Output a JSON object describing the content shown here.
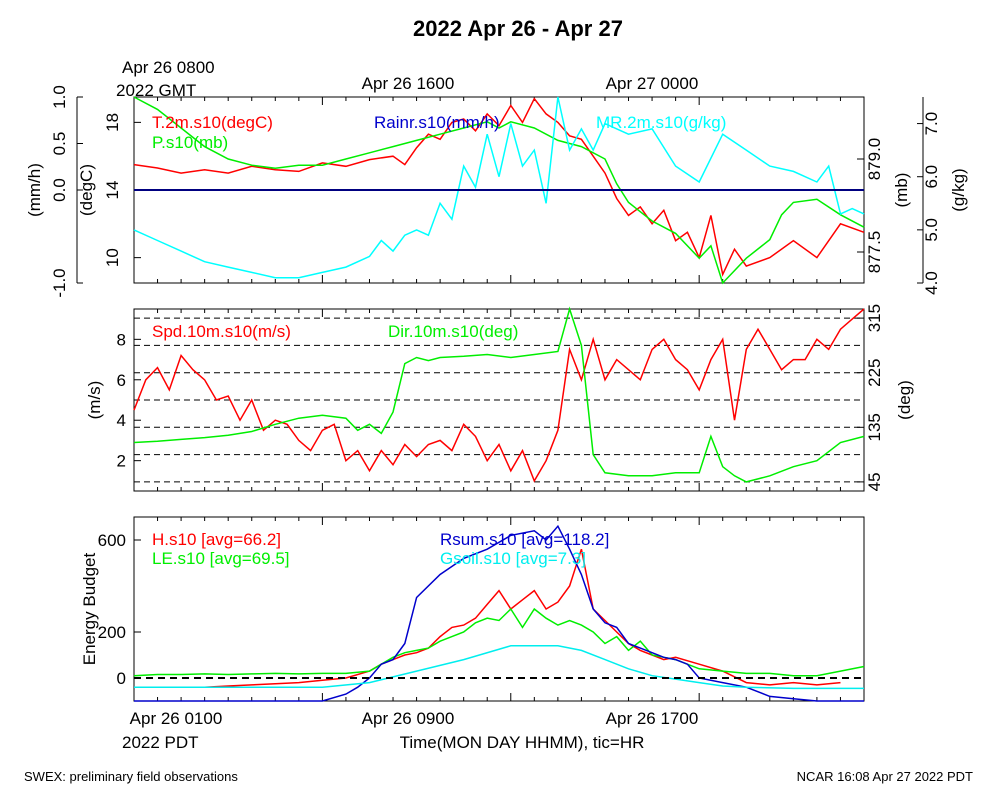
{
  "title": "2022 Apr 26 - Apr 27",
  "top_times": {
    "gmt_label_1": "Apr 26 0800",
    "gmt_label_2": "2022 GMT",
    "t1600": "Apr 26 1600",
    "t0000": "Apr 27 0000"
  },
  "bottom_times": {
    "t0100": "Apr 26 0100",
    "pdt_label": "2022 PDT",
    "t0900": "Apr 26 0900",
    "t1700": "Apr 26 1700",
    "xlabel": "Time(MON DAY HHMM), tic=HR"
  },
  "footer": {
    "left": "SWEX: preliminary field observations",
    "right": "NCAR 16:08 Apr 27 2022 PDT"
  },
  "chart_data": [
    {
      "type": "line",
      "panel": "temperature-pressure-rain-mr",
      "x_hours": [
        0,
        31
      ],
      "axes": {
        "rain": {
          "label": "(mm/h)",
          "ylim": [
            -1.0,
            1.0
          ],
          "ticks": [
            "-1.0",
            "0.0",
            "0.5",
            "1.0"
          ],
          "tick_values": [
            -1.0,
            0.0,
            0.5,
            1.0
          ]
        },
        "temp": {
          "label": "(degC)",
          "ylim": [
            8.5,
            19.5
          ],
          "ticks": [
            "10",
            "14",
            "18"
          ],
          "tick_values": [
            10,
            14,
            18
          ]
        },
        "pressure": {
          "label": "(mb)",
          "ylim": [
            877.0,
            880.0
          ],
          "ticks": [
            "877.5",
            "879.0"
          ],
          "tick_values": [
            877.5,
            879.0
          ]
        },
        "mr": {
          "label": "(g/kg)",
          "ylim": [
            4.0,
            7.5
          ],
          "ticks": [
            "4.0",
            "5.0",
            "6.0",
            "7.0"
          ],
          "tick_values": [
            4.0,
            5.0,
            6.0,
            7.0
          ]
        }
      },
      "series": [
        {
          "name": "T.2m.s10(degC)",
          "axis": "temp",
          "color": "#ff0000",
          "x": [
            0,
            1,
            2,
            3,
            4,
            5,
            6,
            7,
            8,
            9,
            10,
            11,
            11.5,
            12,
            12.5,
            13,
            13.5,
            14,
            14.5,
            15,
            15.5,
            16,
            16.5,
            17,
            17.5,
            18,
            18.5,
            19,
            19.5,
            20,
            20.5,
            21,
            21.5,
            22,
            22.5,
            23,
            23.5,
            24,
            24.5,
            25,
            25.5,
            26,
            27,
            28,
            29,
            30,
            31
          ],
          "y": [
            15.5,
            15.3,
            15.0,
            15.2,
            15.0,
            15.4,
            15.2,
            15.1,
            15.6,
            15.4,
            15.8,
            16.0,
            15.5,
            16.5,
            17.3,
            17.0,
            18.0,
            18.2,
            17.5,
            18.5,
            17.8,
            19.0,
            18.0,
            19.4,
            18.5,
            18.0,
            17.2,
            17.0,
            16.0,
            15.0,
            13.5,
            12.5,
            13.0,
            12.0,
            12.8,
            11.0,
            11.5,
            10.0,
            12.5,
            9.0,
            10.5,
            9.5,
            10.0,
            11.0,
            10.0,
            12.0,
            11.5
          ]
        },
        {
          "name": "P.s10(mb)",
          "axis": "pressure",
          "color": "#00ee00",
          "x": [
            0,
            1,
            2,
            3,
            4,
            5,
            6,
            7,
            8,
            9,
            10,
            11,
            12,
            13,
            14,
            15,
            15.5,
            16,
            17,
            18,
            19,
            20,
            20.5,
            21,
            22,
            23,
            24,
            24.5,
            25,
            25.5,
            26,
            27,
            27.5,
            28,
            29,
            30,
            31
          ],
          "y": [
            880.0,
            879.8,
            879.5,
            879.2,
            879.0,
            878.9,
            878.85,
            878.9,
            878.9,
            879.0,
            879.1,
            879.2,
            879.3,
            879.4,
            879.5,
            879.6,
            879.5,
            879.6,
            879.5,
            879.3,
            879.2,
            879.0,
            878.6,
            878.3,
            878.0,
            877.8,
            877.4,
            877.6,
            877.0,
            877.2,
            877.4,
            877.7,
            878.1,
            878.3,
            878.35,
            878.1,
            877.9
          ]
        },
        {
          "name": "Rainr.s10(mm/h)",
          "axis": "rain",
          "color": "#0000cc",
          "x": [
            0,
            31
          ],
          "y": [
            0.0,
            0.0
          ]
        },
        {
          "name": "MR.2m.s10(g/kg)",
          "axis": "mr",
          "color": "#00ffff",
          "x": [
            0,
            1,
            2,
            3,
            4,
            5,
            6,
            7,
            8,
            9,
            10,
            10.5,
            11,
            11.5,
            12,
            12.5,
            13,
            13.5,
            14,
            14.5,
            15,
            15.5,
            16,
            16.5,
            17,
            17.5,
            18,
            18.5,
            19,
            19.5,
            20,
            21,
            22,
            23,
            24,
            25,
            26,
            27,
            28,
            29,
            29.5,
            30,
            30.5,
            31
          ],
          "y": [
            5.0,
            4.8,
            4.6,
            4.4,
            4.3,
            4.2,
            4.1,
            4.1,
            4.2,
            4.3,
            4.5,
            4.8,
            4.6,
            4.9,
            5.0,
            4.9,
            5.5,
            5.2,
            6.2,
            5.8,
            6.8,
            6.0,
            7.0,
            6.2,
            6.5,
            5.5,
            7.5,
            6.5,
            6.9,
            6.5,
            7.0,
            6.8,
            6.9,
            6.2,
            5.9,
            6.8,
            6.5,
            6.2,
            6.1,
            5.9,
            6.2,
            5.3,
            5.4,
            5.3
          ]
        }
      ],
      "annotation": {
        "hline_value": 0.0,
        "hline_axis": "rain",
        "color": "#000080"
      }
    },
    {
      "type": "line",
      "panel": "wind",
      "x_hours": [
        0,
        31
      ],
      "axes": {
        "spd": {
          "label": "(m/s)",
          "ylim": [
            0.5,
            9.5
          ],
          "ticks": [
            "2",
            "4",
            "6",
            "8"
          ],
          "tick_values": [
            2,
            4,
            6,
            8
          ]
        },
        "dir": {
          "label": "(deg)",
          "ylim": [
            30,
            330
          ],
          "ticks": [
            "45",
            "135",
            "225",
            "315"
          ],
          "tick_values": [
            45,
            135,
            225,
            315
          ]
        }
      },
      "dashed_lines_deg": [
        45,
        90,
        135,
        180,
        225,
        270,
        315
      ],
      "series": [
        {
          "name": "Spd.10m.s10(m/s)",
          "axis": "spd",
          "color": "#ff0000",
          "x": [
            0,
            0.5,
            1,
            1.5,
            2,
            2.5,
            3,
            3.5,
            4,
            4.5,
            5,
            5.5,
            6,
            6.5,
            7,
            7.5,
            8,
            8.5,
            9,
            9.5,
            10,
            10.5,
            11,
            11.5,
            12,
            12.5,
            13,
            13.5,
            14,
            14.5,
            15,
            15.5,
            16,
            16.5,
            17,
            17.5,
            18,
            18.5,
            19,
            19.5,
            20,
            20.5,
            21,
            21.5,
            22,
            22.5,
            23,
            23.5,
            24,
            24.5,
            25,
            25.5,
            26,
            26.5,
            27,
            27.5,
            28,
            28.5,
            29,
            29.5,
            30,
            30.5,
            31
          ],
          "y": [
            4.5,
            6.0,
            6.6,
            5.5,
            7.2,
            6.5,
            6.0,
            5.0,
            5.2,
            4.0,
            5.0,
            3.5,
            4.0,
            3.8,
            3.0,
            2.5,
            3.5,
            3.8,
            2.0,
            2.5,
            1.5,
            2.5,
            1.8,
            2.8,
            2.2,
            2.8,
            3.0,
            2.5,
            3.8,
            3.2,
            2.0,
            2.8,
            1.5,
            2.5,
            1.0,
            2.0,
            3.5,
            7.5,
            6.0,
            8.0,
            6.0,
            7.0,
            6.5,
            6.0,
            7.5,
            8.0,
            7.0,
            6.5,
            5.5,
            7.0,
            8.0,
            4.0,
            7.5,
            8.5,
            7.5,
            6.5,
            7.0,
            7.0,
            8.0,
            7.5,
            8.5,
            9.0,
            9.5
          ]
        },
        {
          "name": "Dir.10m.s10(deg)",
          "axis": "dir",
          "color": "#00ee00",
          "x": [
            0,
            1,
            2,
            3,
            4,
            5,
            6,
            7,
            8,
            9,
            9.5,
            10,
            10.5,
            11,
            11.5,
            12,
            12.5,
            13,
            14,
            15,
            16,
            17,
            18,
            18.5,
            19,
            19.5,
            20,
            21,
            22,
            23,
            24,
            24.5,
            25,
            25.5,
            26,
            26.5,
            27,
            28,
            29,
            30,
            31
          ],
          "y": [
            110,
            112,
            115,
            118,
            122,
            128,
            140,
            150,
            155,
            150,
            130,
            140,
            125,
            160,
            240,
            250,
            245,
            250,
            252,
            255,
            250,
            255,
            260,
            330,
            270,
            90,
            60,
            55,
            55,
            60,
            60,
            120,
            70,
            55,
            45,
            50,
            55,
            70,
            80,
            110,
            120
          ]
        }
      ]
    },
    {
      "type": "line",
      "panel": "energy-budget",
      "x_hours": [
        0,
        31
      ],
      "axes": {
        "energy": {
          "label": "Energy Budget",
          "ylim": [
            -100,
            700
          ],
          "ticks": [
            "0",
            "200",
            "600"
          ],
          "tick_values": [
            0,
            200,
            600
          ]
        }
      },
      "series": [
        {
          "name": "H.s10 [avg=66.2]",
          "color": "#ff0000",
          "x": [
            3,
            4,
            5,
            6,
            7,
            8,
            9,
            10,
            10.5,
            11,
            11.5,
            12,
            12.5,
            13,
            13.5,
            14,
            14.5,
            15,
            15.5,
            16,
            16.5,
            17,
            17.5,
            18,
            18.5,
            19,
            19.5,
            20,
            20.5,
            21,
            21.5,
            22,
            22.5,
            23,
            24,
            25,
            26,
            27,
            28,
            29,
            30
          ],
          "y": [
            -40,
            -35,
            -30,
            -25,
            -20,
            -10,
            0,
            30,
            60,
            80,
            100,
            110,
            130,
            180,
            220,
            230,
            260,
            320,
            380,
            300,
            340,
            380,
            300,
            330,
            400,
            560,
            300,
            250,
            200,
            150,
            120,
            100,
            80,
            90,
            60,
            30,
            -20,
            -30,
            -20,
            -30,
            -20
          ]
        },
        {
          "name": "LE.s10 [avg=69.5]",
          "color": "#00ee00",
          "x": [
            0,
            1,
            2,
            3,
            4,
            5,
            6,
            7,
            8,
            9,
            10,
            10.5,
            11,
            11.5,
            12,
            12.5,
            13,
            13.5,
            14,
            14.5,
            15,
            15.5,
            16,
            16.5,
            17,
            17.5,
            18,
            18.5,
            19,
            19.5,
            20,
            20.5,
            21,
            21.5,
            22,
            22.5,
            23,
            24,
            25,
            26,
            27,
            28,
            29,
            30,
            31
          ],
          "y": [
            10,
            15,
            15,
            18,
            15,
            18,
            20,
            18,
            20,
            20,
            30,
            60,
            90,
            110,
            120,
            130,
            160,
            180,
            200,
            240,
            260,
            250,
            300,
            220,
            300,
            260,
            230,
            250,
            230,
            200,
            150,
            180,
            120,
            160,
            100,
            90,
            80,
            40,
            30,
            20,
            20,
            10,
            10,
            30,
            50
          ]
        },
        {
          "name": "Rsum.s10 [avg=118.2]",
          "color": "#0000cc",
          "x": [
            0,
            5,
            8,
            9,
            9.5,
            10,
            10.5,
            11,
            11.5,
            12,
            13,
            14,
            15,
            16,
            17,
            17.5,
            18,
            18.5,
            19,
            19.5,
            20,
            20.5,
            21,
            21.5,
            22,
            22.5,
            23,
            23.5,
            24,
            25,
            26,
            27,
            28,
            29,
            30,
            31
          ],
          "y": [
            -100,
            -100,
            -100,
            -70,
            -40,
            0,
            60,
            80,
            150,
            350,
            450,
            520,
            560,
            620,
            640,
            600,
            660,
            560,
            450,
            300,
            240,
            220,
            150,
            130,
            110,
            90,
            80,
            60,
            0,
            -20,
            -40,
            -80,
            -90,
            -100,
            -100,
            -100
          ]
        },
        {
          "name": "Gsoil.s10 [avg=7.3]",
          "color": "#00eeee",
          "x": [
            0,
            4,
            8,
            10,
            12,
            14,
            16,
            18,
            19,
            20,
            21,
            22,
            23,
            24,
            25,
            26,
            28,
            30,
            31
          ],
          "y": [
            -40,
            -40,
            -40,
            -20,
            30,
            80,
            140,
            140,
            120,
            80,
            40,
            10,
            -5,
            -20,
            -35,
            -40,
            -45,
            -45,
            -45
          ]
        }
      ],
      "annotation": {
        "hline_value": 0,
        "style": "dashed"
      }
    }
  ],
  "colors": {
    "axes": "#000000",
    "background": "#ffffff"
  }
}
